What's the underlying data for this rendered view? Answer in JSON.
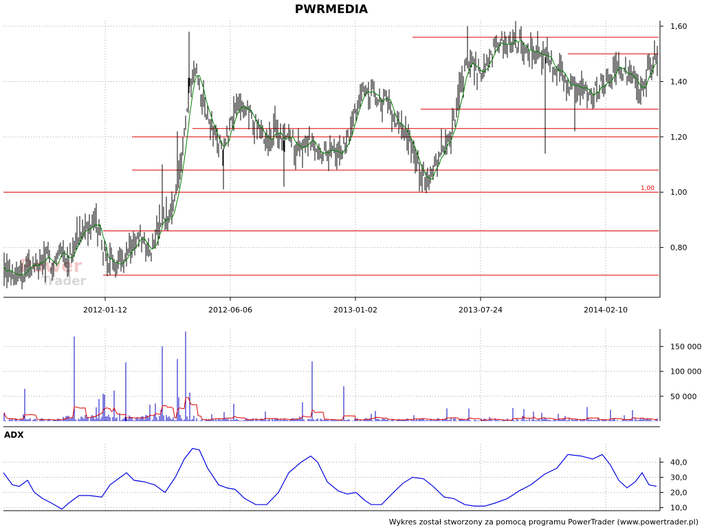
{
  "title": "PWRMEDIA",
  "watermark": {
    "line1": "Power",
    "line2": "Trader"
  },
  "footer": "Wykres został stworzony za pomocą programu PowerTrader (www.powertrader.pl)",
  "colors": {
    "price_bar": "#000000",
    "moving_average": "#008000",
    "horizontal_levels": "#e00000",
    "volume_bars": "#0000c0",
    "volume_average": "#e00000",
    "adx_line": "#0000e0",
    "grid": "#a0a0a0"
  },
  "chart_data": [
    {
      "name": "price",
      "type": "line",
      "series": [
        {
          "name": "",
          "style": "ohlc-bars"
        },
        {
          "name": "",
          "style": "moving-average"
        }
      ],
      "x_ticks": [
        "2012-01-12",
        "2012-06-06",
        "2013-01-02",
        "2013-07-24",
        "2014-02-10"
      ],
      "y_ticks": [
        "0,80",
        "1,00",
        "1,20",
        "1,40",
        "1,60"
      ],
      "ylim": [
        0.62,
        1.62
      ],
      "grid": true,
      "horizontal_levels": [
        0.7,
        0.86,
        1.0,
        1.08,
        1.2,
        1.23,
        1.3,
        1.5,
        1.56
      ],
      "annotation": "1,00",
      "close_path": [
        [
          0,
          0.76
        ],
        [
          5,
          0.75
        ],
        [
          12,
          0.72
        ],
        [
          20,
          0.7
        ],
        [
          28,
          0.72
        ],
        [
          35,
          0.7
        ],
        [
          42,
          0.74
        ],
        [
          50,
          0.73
        ],
        [
          60,
          0.75
        ],
        [
          70,
          0.76
        ],
        [
          78,
          0.74
        ],
        [
          88,
          0.79
        ],
        [
          98,
          0.76
        ],
        [
          108,
          0.81
        ],
        [
          115,
          0.86
        ],
        [
          125,
          0.84
        ],
        [
          135,
          0.89
        ],
        [
          143,
          0.87
        ],
        [
          150,
          0.79
        ],
        [
          158,
          0.74
        ],
        [
          165,
          0.76
        ],
        [
          172,
          0.75
        ],
        [
          180,
          0.77
        ],
        [
          188,
          0.79
        ],
        [
          196,
          0.81
        ],
        [
          204,
          0.83
        ],
        [
          212,
          0.81
        ],
        [
          220,
          0.8
        ],
        [
          228,
          0.85
        ],
        [
          236,
          0.9
        ],
        [
          244,
          0.88
        ],
        [
          252,
          0.95
        ],
        [
          260,
          1.08
        ],
        [
          266,
          1.16
        ],
        [
          270,
          1.25
        ],
        [
          276,
          1.38
        ],
        [
          282,
          1.44
        ],
        [
          288,
          1.4
        ],
        [
          294,
          1.35
        ],
        [
          300,
          1.28
        ],
        [
          308,
          1.24
        ],
        [
          316,
          1.18
        ],
        [
          324,
          1.15
        ],
        [
          332,
          1.22
        ],
        [
          340,
          1.3
        ],
        [
          348,
          1.33
        ],
        [
          356,
          1.27
        ],
        [
          364,
          1.3
        ],
        [
          372,
          1.24
        ],
        [
          380,
          1.2
        ],
        [
          390,
          1.19
        ],
        [
          400,
          1.22
        ],
        [
          410,
          1.18
        ],
        [
          420,
          1.2
        ],
        [
          430,
          1.17
        ],
        [
          440,
          1.16
        ],
        [
          450,
          1.19
        ],
        [
          460,
          1.17
        ],
        [
          470,
          1.14
        ],
        [
          480,
          1.16
        ],
        [
          490,
          1.13
        ],
        [
          500,
          1.16
        ],
        [
          510,
          1.22
        ],
        [
          520,
          1.32
        ],
        [
          530,
          1.38
        ],
        [
          540,
          1.36
        ],
        [
          550,
          1.34
        ],
        [
          560,
          1.33
        ],
        [
          570,
          1.3
        ],
        [
          580,
          1.24
        ],
        [
          590,
          1.22
        ],
        [
          598,
          1.16
        ],
        [
          606,
          1.1
        ],
        [
          614,
          1.07
        ],
        [
          622,
          1.05
        ],
        [
          630,
          1.09
        ],
        [
          638,
          1.12
        ],
        [
          646,
          1.17
        ],
        [
          656,
          1.21
        ],
        [
          664,
          1.3
        ],
        [
          672,
          1.38
        ],
        [
          680,
          1.48
        ],
        [
          690,
          1.45
        ],
        [
          700,
          1.42
        ],
        [
          710,
          1.47
        ],
        [
          720,
          1.52
        ],
        [
          730,
          1.54
        ],
        [
          740,
          1.53
        ],
        [
          750,
          1.55
        ],
        [
          760,
          1.53
        ],
        [
          770,
          1.52
        ],
        [
          780,
          1.51
        ],
        [
          790,
          1.5
        ],
        [
          800,
          1.46
        ],
        [
          810,
          1.44
        ],
        [
          820,
          1.42
        ],
        [
          830,
          1.38
        ],
        [
          840,
          1.37
        ],
        [
          850,
          1.38
        ],
        [
          860,
          1.36
        ],
        [
          870,
          1.37
        ],
        [
          880,
          1.4
        ],
        [
          890,
          1.43
        ],
        [
          900,
          1.45
        ],
        [
          910,
          1.43
        ],
        [
          920,
          1.41
        ],
        [
          930,
          1.36
        ],
        [
          940,
          1.43
        ],
        [
          950,
          1.47
        ],
        [
          956,
          1.46
        ]
      ]
    },
    {
      "name": "volume",
      "type": "bar",
      "y_ticks": [
        "50 000",
        "100 000",
        "150 000"
      ],
      "ylim": [
        0,
        185000
      ],
      "grid": true,
      "peaks": [
        [
          108,
          170000
        ],
        [
          236,
          150000
        ],
        [
          270,
          180000
        ],
        [
          258,
          125000
        ],
        [
          183,
          118000
        ],
        [
          454,
          120000
        ],
        [
          500,
          70000
        ],
        [
          36,
          65000
        ],
        [
          150,
          55000
        ],
        [
          340,
          35000
        ],
        [
          440,
          38000
        ]
      ]
    },
    {
      "name": "ADX",
      "type": "line",
      "title": "ADX",
      "y_ticks": [
        "10,0",
        "20,0",
        "30,0",
        "40,0"
      ],
      "ylim": [
        8,
        52
      ],
      "grid": true,
      "values": [
        [
          5,
          33
        ],
        [
          18,
          25
        ],
        [
          28,
          24
        ],
        [
          40,
          28
        ],
        [
          50,
          20
        ],
        [
          62,
          16
        ],
        [
          75,
          13
        ],
        [
          90,
          9
        ],
        [
          100,
          13
        ],
        [
          115,
          18
        ],
        [
          130,
          18
        ],
        [
          148,
          17
        ],
        [
          160,
          25
        ],
        [
          175,
          30
        ],
        [
          184,
          33
        ],
        [
          195,
          28
        ],
        [
          210,
          27
        ],
        [
          225,
          25
        ],
        [
          240,
          20
        ],
        [
          255,
          30
        ],
        [
          268,
          42
        ],
        [
          280,
          49
        ],
        [
          290,
          48
        ],
        [
          302,
          36
        ],
        [
          318,
          25
        ],
        [
          330,
          23
        ],
        [
          342,
          22
        ],
        [
          356,
          16
        ],
        [
          372,
          12
        ],
        [
          388,
          12
        ],
        [
          405,
          20
        ],
        [
          420,
          33
        ],
        [
          438,
          40
        ],
        [
          452,
          44
        ],
        [
          462,
          40
        ],
        [
          476,
          27
        ],
        [
          492,
          21
        ],
        [
          505,
          19
        ],
        [
          518,
          20
        ],
        [
          530,
          15
        ],
        [
          540,
          12
        ],
        [
          555,
          12
        ],
        [
          570,
          19
        ],
        [
          586,
          26
        ],
        [
          600,
          30
        ],
        [
          616,
          29
        ],
        [
          630,
          24
        ],
        [
          646,
          17
        ],
        [
          660,
          16
        ],
        [
          676,
          12
        ],
        [
          690,
          11
        ],
        [
          705,
          11
        ],
        [
          720,
          13
        ],
        [
          738,
          16
        ],
        [
          755,
          21
        ],
        [
          772,
          25
        ],
        [
          792,
          32
        ],
        [
          810,
          36
        ],
        [
          826,
          45
        ],
        [
          845,
          44
        ],
        [
          862,
          42
        ],
        [
          876,
          45
        ],
        [
          888,
          38
        ],
        [
          900,
          28
        ],
        [
          912,
          23
        ],
        [
          924,
          27
        ],
        [
          934,
          33
        ],
        [
          944,
          25
        ],
        [
          955,
          24
        ]
      ]
    }
  ]
}
